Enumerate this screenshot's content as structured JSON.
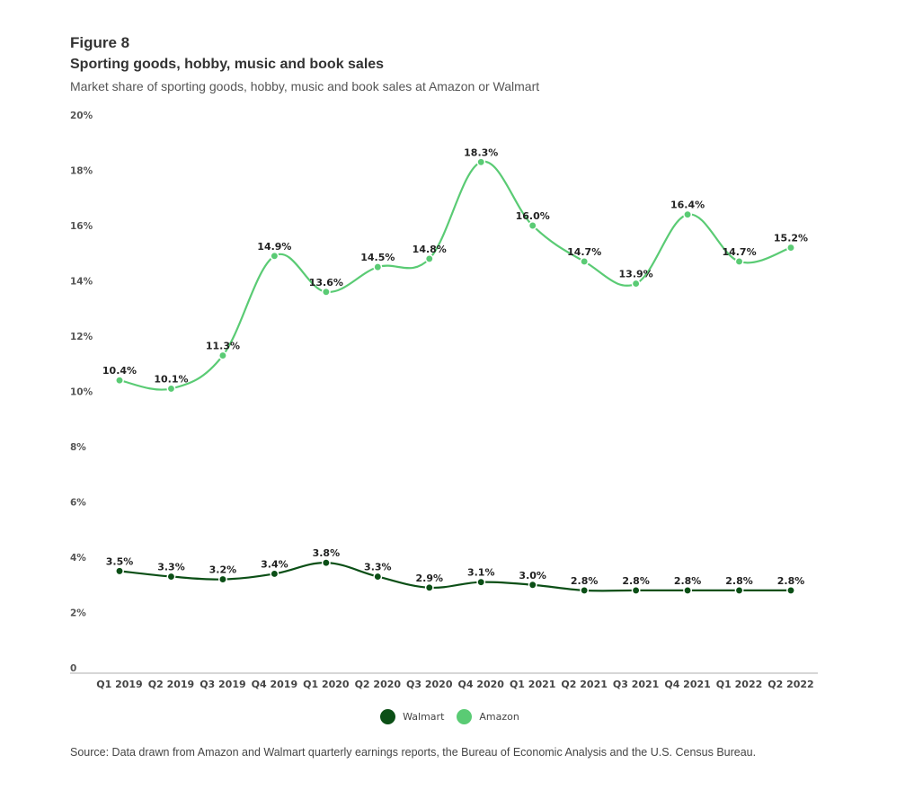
{
  "header": {
    "figure_number": "Figure 8",
    "title": "Sporting goods, hobby, music and book sales",
    "subtitle": "Market share of sporting goods, hobby, music and book sales at Amazon or Walmart"
  },
  "source": "Source: Data drawn from Amazon and Walmart quarterly earnings reports, the Bureau of Economic Analysis and the U.S. Census Bureau.",
  "chart_data": {
    "type": "line",
    "title": "Sporting goods, hobby, music and book sales",
    "subtitle": "Market share of sporting goods, hobby, music and book sales at Amazon or Walmart",
    "xlabel": "",
    "ylabel": "",
    "ylim": [
      0,
      20
    ],
    "yticks": [
      0,
      2,
      4,
      6,
      8,
      10,
      12,
      14,
      16,
      18,
      20
    ],
    "ytick_labels": [
      "0",
      "2%",
      "4%",
      "6%",
      "8%",
      "10%",
      "12%",
      "14%",
      "16%",
      "18%",
      "20%"
    ],
    "grid": false,
    "smooth": true,
    "legend_position": "bottom-center",
    "categories": [
      "Q1 2019",
      "Q2 2019",
      "Q3 2019",
      "Q4 2019",
      "Q1 2020",
      "Q2 2020",
      "Q3 2020",
      "Q4 2020",
      "Q1 2021",
      "Q2 2021",
      "Q3 2021",
      "Q4 2021",
      "Q1 2022",
      "Q2 2022"
    ],
    "series": [
      {
        "name": "Walmart",
        "color": "#0b4f16",
        "values": [
          3.5,
          3.3,
          3.2,
          3.4,
          3.8,
          3.3,
          2.9,
          3.1,
          3.0,
          2.8,
          2.8,
          2.8,
          2.8,
          2.8
        ],
        "labels": [
          "3.5%",
          "3.3%",
          "3.2%",
          "3.4%",
          "3.8%",
          "3.3%",
          "2.9%",
          "3.1%",
          "3.0%",
          "2.8%",
          "2.8%",
          "2.8%",
          "2.8%",
          "2.8%"
        ]
      },
      {
        "name": "Amazon",
        "color": "#5acb74",
        "values": [
          10.4,
          10.1,
          11.3,
          14.9,
          13.6,
          14.5,
          14.8,
          18.3,
          16.0,
          14.7,
          13.9,
          16.4,
          14.7,
          15.2
        ],
        "labels": [
          "10.4%",
          "10.1%",
          "11.3%",
          "14.9%",
          "13.6%",
          "14.5%",
          "14.8%",
          "18.3%",
          "16.0%",
          "14.7%",
          "13.9%",
          "16.4%",
          "14.7%",
          "15.2%"
        ]
      }
    ]
  }
}
